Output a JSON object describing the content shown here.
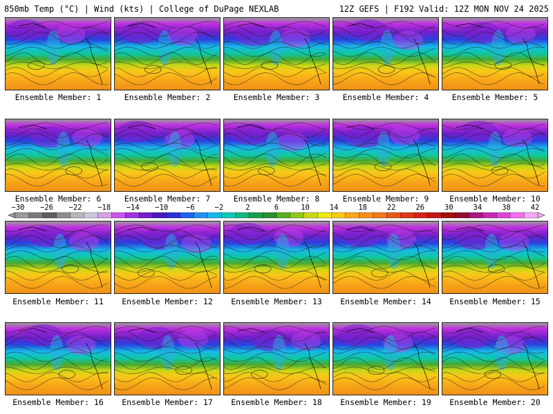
{
  "header": {
    "title_left": "850mb Temp (°C) | Wind (kts) | College of DuPage NEXLAB",
    "title_right": "12Z GEFS | F192 Valid: 12Z MON NOV 24 2025"
  },
  "members": [
    {
      "label": "Ensemble Member: 1"
    },
    {
      "label": "Ensemble Member: 2"
    },
    {
      "label": "Ensemble Member: 3"
    },
    {
      "label": "Ensemble Member: 4"
    },
    {
      "label": "Ensemble Member: 5"
    },
    {
      "label": "Ensemble Member: 6"
    },
    {
      "label": "Ensemble Member: 7"
    },
    {
      "label": "Ensemble Member: 8"
    },
    {
      "label": "Ensemble Member: 9"
    },
    {
      "label": "Ensemble Member: 10"
    },
    {
      "label": "Ensemble Member: 11"
    },
    {
      "label": "Ensemble Member: 12"
    },
    {
      "label": "Ensemble Member: 13"
    },
    {
      "label": "Ensemble Member: 14"
    },
    {
      "label": "Ensemble Member: 15"
    },
    {
      "label": "Ensemble Member: 16"
    },
    {
      "label": "Ensemble Member: 17"
    },
    {
      "label": "Ensemble Member: 18"
    },
    {
      "label": "Ensemble Member: 19"
    },
    {
      "label": "Ensemble Member: 20"
    }
  ],
  "colorbar": {
    "labels": [
      "−30",
      "−26",
      "−22",
      "−18",
      "−14",
      "−10",
      "−6",
      "−2",
      "2",
      "6",
      "10",
      "14",
      "18",
      "22",
      "26",
      "30",
      "34",
      "38",
      "42"
    ],
    "colors": [
      "#9a9a9a",
      "#7a7a7a",
      "#5e5e5e",
      "#8c8c8c",
      "#b6b6b6",
      "#c8c8dc",
      "#d8a0e8",
      "#cc55ee",
      "#a032e0",
      "#7020c8",
      "#4a18c0",
      "#2a30d8",
      "#2060f0",
      "#2090f0",
      "#18b8e8",
      "#10c8b8",
      "#10b880",
      "#18a048",
      "#289030",
      "#58b020",
      "#90c818",
      "#c8d818",
      "#f0e818",
      "#f8c818",
      "#f8a818",
      "#f89018",
      "#f07818",
      "#e85818",
      "#e03818",
      "#d82018",
      "#c01818",
      "#a01010",
      "#900c30",
      "#a81880",
      "#c828b0",
      "#e040d8",
      "#f070f0",
      "#f8a8f8"
    ]
  }
}
